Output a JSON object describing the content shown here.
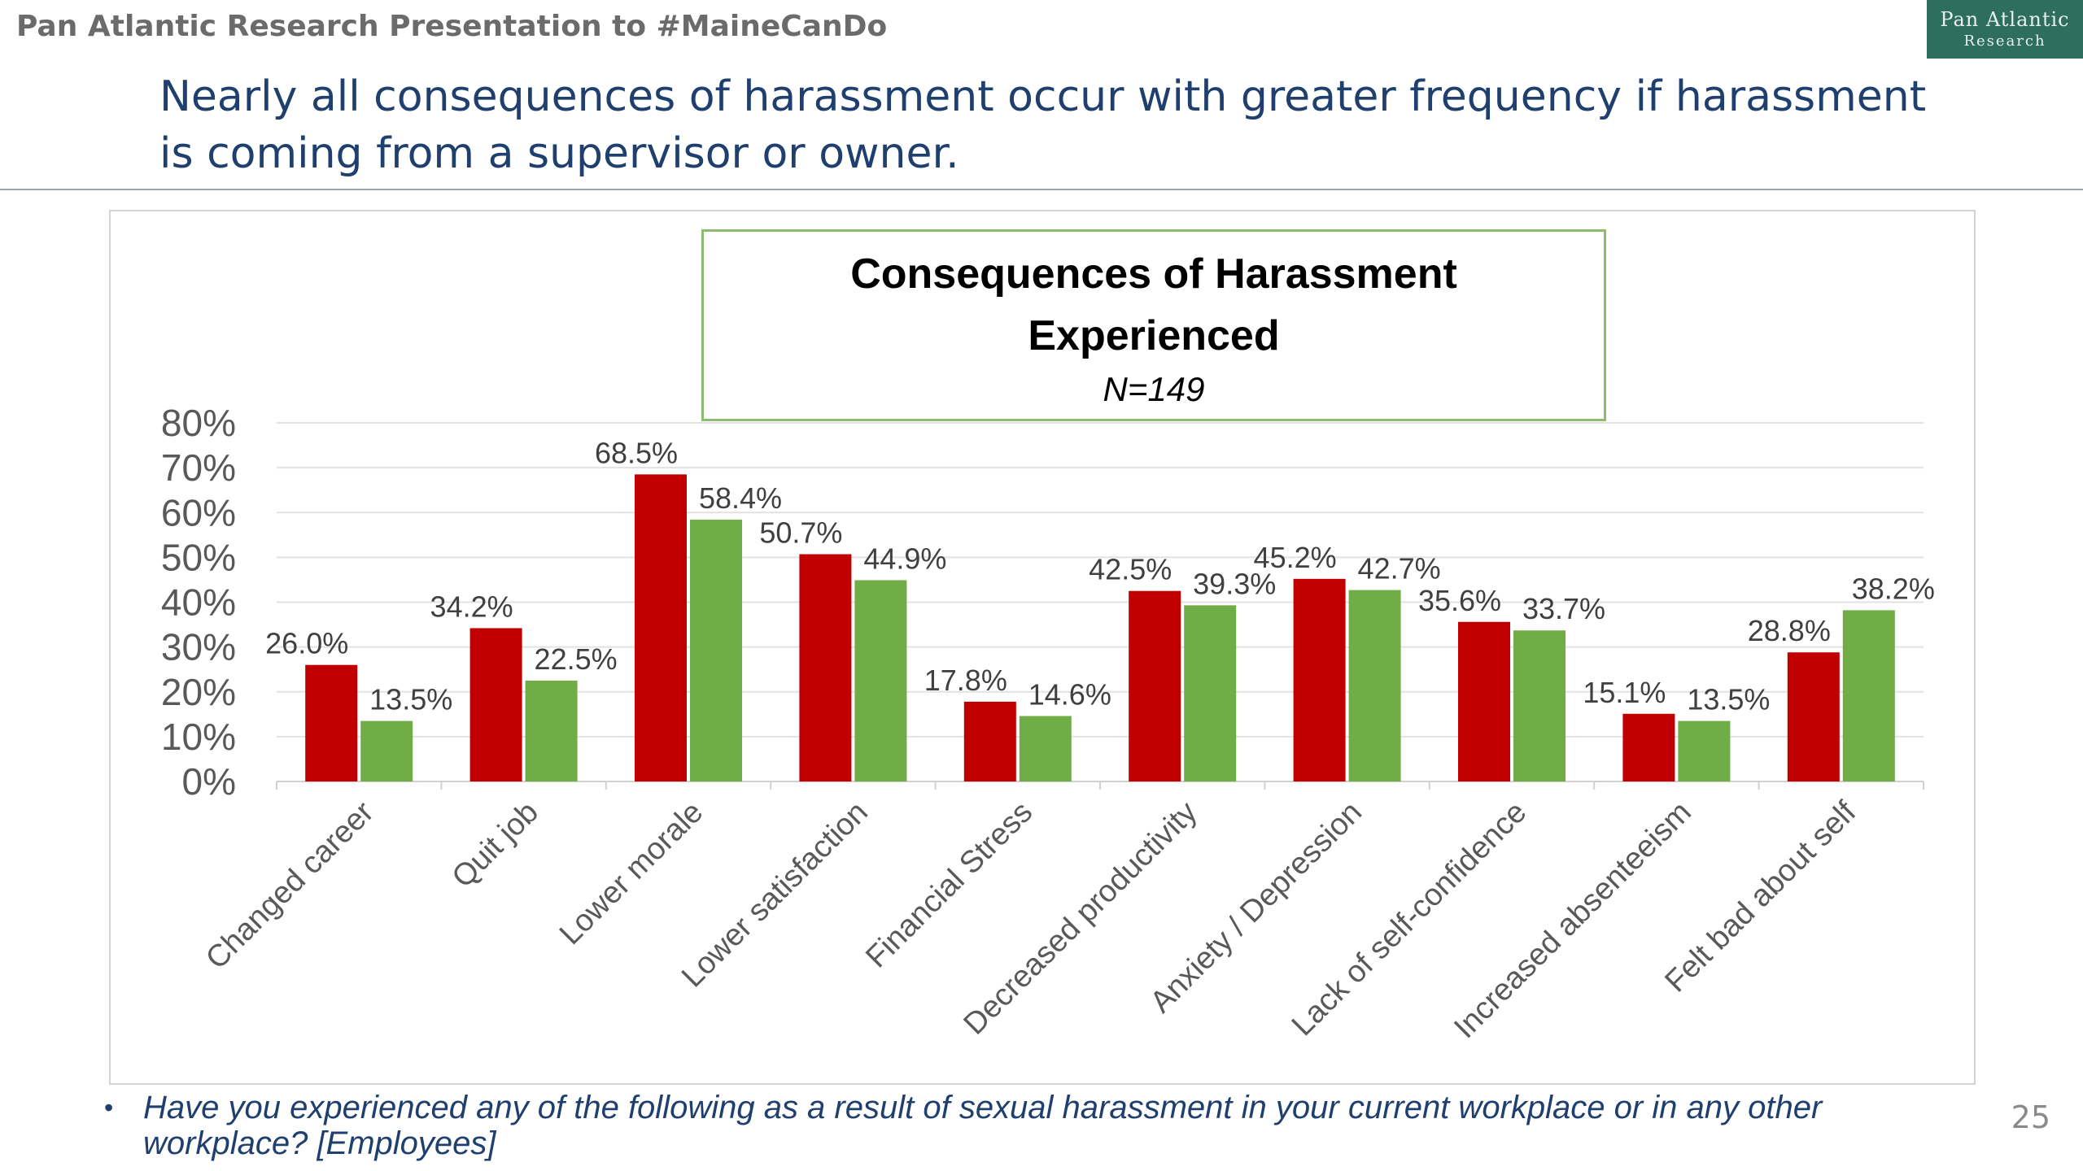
{
  "header": {
    "left_text": "Pan Atlantic Research Presentation to #MaineCanDo",
    "logo_line1": "Pan Atlantic",
    "logo_line2": "Research"
  },
  "headline": "Nearly all consequences of harassment occur with greater frequency if harassment is coming from a supervisor or owner.",
  "chart_data": {
    "type": "bar",
    "title": "Consequences of Harassment Experienced",
    "subtitle": "N=149",
    "categories": [
      "Changed career",
      "Quit job",
      "Lower morale",
      "Lower satisfaction",
      "Financial Stress",
      "Decreased productivity",
      "Anxiety / Depression",
      "Lack of self-confidence",
      "Increased absenteeism",
      "Felt bad about self"
    ],
    "series": [
      {
        "color": "#c00000",
        "values": [
          26.0,
          34.2,
          68.5,
          50.7,
          17.8,
          42.5,
          45.2,
          35.6,
          15.1,
          28.8
        ]
      },
      {
        "color": "#70ad47",
        "values": [
          13.5,
          22.5,
          58.4,
          44.9,
          14.6,
          39.3,
          42.7,
          33.7,
          13.5,
          38.2
        ]
      }
    ],
    "y_ticks": [
      "0%",
      "10%",
      "20%",
      "30%",
      "40%",
      "50%",
      "60%",
      "70%",
      "80%"
    ],
    "ylim": [
      0,
      80
    ],
    "grid": true,
    "xlabel": "",
    "ylabel": ""
  },
  "footnote": {
    "bullet": "•",
    "text": "Have you experienced any of the following as a result of sexual harassment in your current workplace or in any other workplace? [Employees]"
  },
  "page_number": "25"
}
